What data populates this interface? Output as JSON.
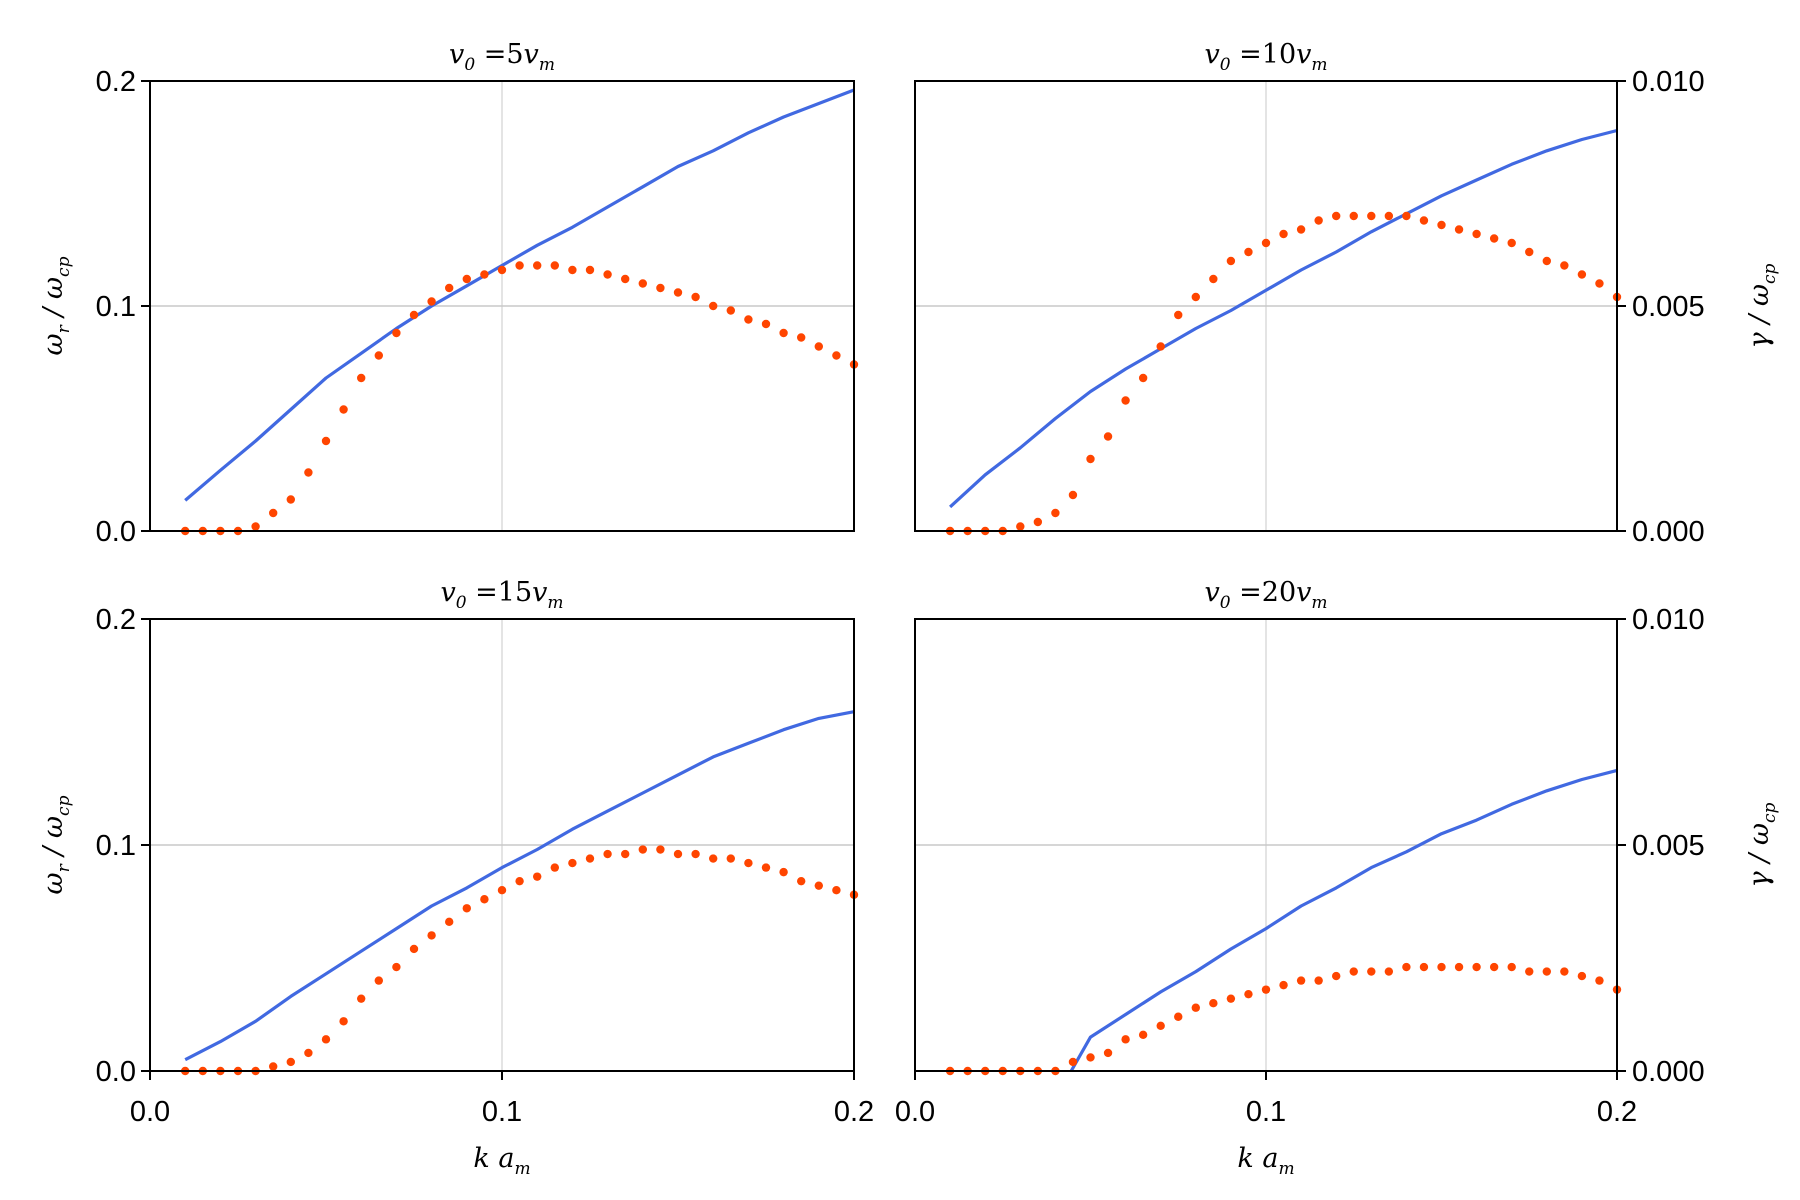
{
  "chart_data": [
    {
      "type": "line+scatter",
      "title": {
        "lhs": "v",
        "lhs_sub": "0",
        "eq": "=",
        "num": "5",
        "rhs": "v",
        "rhs_sub": "m"
      },
      "xlim": [
        0,
        0.2
      ],
      "ylim_left": [
        0,
        0.2
      ],
      "ylim_right": [
        0,
        0.01
      ],
      "xticks": [
        "0.0",
        "0.1",
        "0.2"
      ],
      "show_xticks": false,
      "yticks_left": [
        "0.0",
        "0.1",
        "0.2"
      ],
      "show_left": true,
      "yticks_right": [
        "0.000",
        "0.005",
        "0.010"
      ],
      "show_right": false,
      "grid": true,
      "line": {
        "axis": "left",
        "x": [
          0.01,
          0.02,
          0.03,
          0.04,
          0.05,
          0.06,
          0.07,
          0.08,
          0.09,
          0.1,
          0.11,
          0.12,
          0.13,
          0.14,
          0.15,
          0.16,
          0.17,
          0.18,
          0.19,
          0.2
        ],
        "y": [
          0.0136,
          0.027,
          0.04,
          0.054,
          0.068,
          0.079,
          0.09,
          0.1,
          0.109,
          0.118,
          0.127,
          0.135,
          0.144,
          0.153,
          0.162,
          0.169,
          0.177,
          0.184,
          0.19,
          0.196
        ]
      },
      "dots": {
        "axis": "right",
        "y": [
          0,
          0,
          0,
          0,
          0.0001,
          0.0004,
          0.0007,
          0.0013,
          0.002,
          0.0027,
          0.0034,
          0.0039,
          0.0044,
          0.0048,
          0.0051,
          0.0054,
          0.0056,
          0.0057,
          0.0058,
          0.0059,
          0.0059,
          0.0059,
          0.0058,
          0.0058,
          0.0057,
          0.0056,
          0.0055,
          0.0054,
          0.0053,
          0.0052,
          0.005,
          0.0049,
          0.0047,
          0.0046,
          0.0044,
          0.0043,
          0.0041,
          0.0039,
          0.0037
        ]
      }
    },
    {
      "type": "line+scatter",
      "title": {
        "lhs": "v",
        "lhs_sub": "0",
        "eq": "=",
        "num": "10",
        "rhs": "v",
        "rhs_sub": "m"
      },
      "xlim": [
        0,
        0.2
      ],
      "ylim_left": [
        0,
        0.2
      ],
      "ylim_right": [
        0,
        0.01
      ],
      "xticks": [
        "0.0",
        "0.1",
        "0.2"
      ],
      "show_xticks": false,
      "yticks_left": [
        "0.0",
        "0.1",
        "0.2"
      ],
      "show_left": false,
      "yticks_right": [
        "0.000",
        "0.005",
        "0.010"
      ],
      "show_right": true,
      "grid": true,
      "line": {
        "axis": "left",
        "x": [
          0.01,
          0.02,
          0.03,
          0.04,
          0.05,
          0.06,
          0.07,
          0.08,
          0.09,
          0.1,
          0.11,
          0.12,
          0.13,
          0.14,
          0.15,
          0.16,
          0.17,
          0.18,
          0.19,
          0.2
        ],
        "y": [
          0.0107,
          0.025,
          0.037,
          0.05,
          0.062,
          0.072,
          0.081,
          0.09,
          0.098,
          0.107,
          0.116,
          0.124,
          0.133,
          0.141,
          0.149,
          0.156,
          0.163,
          0.169,
          0.174,
          0.178
        ]
      },
      "dots": {
        "axis": "right",
        "y": [
          0,
          0,
          0,
          0,
          0.0001,
          0.0002,
          0.0004,
          0.0008,
          0.0016,
          0.0021,
          0.0029,
          0.0034,
          0.0041,
          0.0048,
          0.0052,
          0.0056,
          0.006,
          0.0062,
          0.0064,
          0.0066,
          0.0067,
          0.0069,
          0.007,
          0.007,
          0.007,
          0.007,
          0.007,
          0.0069,
          0.0068,
          0.0067,
          0.0066,
          0.0065,
          0.0064,
          0.0062,
          0.006,
          0.0059,
          0.0057,
          0.0055,
          0.0052
        ]
      }
    },
    {
      "type": "line+scatter",
      "title": {
        "lhs": "v",
        "lhs_sub": "0",
        "eq": "=",
        "num": "15",
        "rhs": "v",
        "rhs_sub": "m"
      },
      "xlim": [
        0,
        0.2
      ],
      "ylim_left": [
        0,
        0.2
      ],
      "ylim_right": [
        0,
        0.01
      ],
      "xticks": [
        "0.0",
        "0.1",
        "0.2"
      ],
      "show_xticks": true,
      "yticks_left": [
        "0.0",
        "0.1",
        "0.2"
      ],
      "show_left": true,
      "yticks_right": [
        "0.000",
        "0.005",
        "0.010"
      ],
      "show_right": false,
      "grid": true,
      "line": {
        "axis": "left",
        "x": [
          0.01,
          0.02,
          0.03,
          0.04,
          0.05,
          0.06,
          0.07,
          0.08,
          0.09,
          0.1,
          0.11,
          0.12,
          0.13,
          0.14,
          0.15,
          0.16,
          0.17,
          0.18,
          0.19,
          0.2
        ],
        "y": [
          0.005,
          0.013,
          0.022,
          0.033,
          0.043,
          0.053,
          0.063,
          0.073,
          0.081,
          0.09,
          0.098,
          0.107,
          0.115,
          0.123,
          0.131,
          0.139,
          0.145,
          0.151,
          0.156,
          0.159
        ]
      },
      "dots": {
        "axis": "right",
        "y": [
          0,
          0,
          0,
          0,
          0,
          0.0001,
          0.0002,
          0.0004,
          0.0007,
          0.0011,
          0.0016,
          0.002,
          0.0023,
          0.0027,
          0.003,
          0.0033,
          0.0036,
          0.0038,
          0.004,
          0.0042,
          0.0043,
          0.0045,
          0.0046,
          0.0047,
          0.0048,
          0.0048,
          0.0049,
          0.0049,
          0.0048,
          0.0048,
          0.0047,
          0.0047,
          0.0046,
          0.0045,
          0.0044,
          0.0042,
          0.0041,
          0.004,
          0.0039
        ]
      }
    },
    {
      "type": "line+scatter",
      "title": {
        "lhs": "v",
        "lhs_sub": "0",
        "eq": "=",
        "num": "20",
        "rhs": "v",
        "rhs_sub": "m"
      },
      "xlim": [
        0,
        0.2
      ],
      "ylim_left": [
        0,
        0.2
      ],
      "ylim_right": [
        0,
        0.01
      ],
      "xticks": [
        "0.0",
        "0.1",
        "0.2"
      ],
      "show_xticks": true,
      "yticks_left": [
        "0.0",
        "0.1",
        "0.2"
      ],
      "show_left": false,
      "yticks_right": [
        "0.000",
        "0.005",
        "0.010"
      ],
      "show_right": true,
      "grid": true,
      "line": {
        "axis": "left",
        "x": [
          0.0445,
          0.05,
          0.06,
          0.07,
          0.08,
          0.09,
          0.1,
          0.11,
          0.12,
          0.13,
          0.14,
          0.15,
          0.16,
          0.17,
          0.18,
          0.19,
          0.2
        ],
        "y": [
          0,
          0.015,
          0.025,
          0.035,
          0.044,
          0.054,
          0.063,
          0.073,
          0.081,
          0.09,
          0.097,
          0.105,
          0.111,
          0.118,
          0.124,
          0.129,
          0.133
        ]
      },
      "dots": {
        "axis": "right",
        "y": [
          0,
          0,
          0,
          0,
          0,
          0,
          0,
          0.0002,
          0.0003,
          0.0004,
          0.0007,
          0.0008,
          0.001,
          0.0012,
          0.0014,
          0.0015,
          0.0016,
          0.0017,
          0.0018,
          0.0019,
          0.002,
          0.002,
          0.0021,
          0.0022,
          0.0022,
          0.0022,
          0.0023,
          0.0023,
          0.0023,
          0.0023,
          0.0023,
          0.0023,
          0.0023,
          0.0022,
          0.0022,
          0.0022,
          0.0021,
          0.002,
          0.0018
        ]
      }
    }
  ],
  "dots_x": [
    0.01,
    0.015,
    0.02,
    0.025,
    0.03,
    0.035,
    0.04,
    0.045,
    0.05,
    0.055,
    0.06,
    0.065,
    0.07,
    0.075,
    0.08,
    0.085,
    0.09,
    0.095,
    0.1,
    0.105,
    0.11,
    0.115,
    0.12,
    0.125,
    0.13,
    0.135,
    0.14,
    0.145,
    0.15,
    0.155,
    0.16,
    0.165,
    0.17,
    0.175,
    0.18,
    0.185,
    0.19,
    0.195,
    0.2
  ],
  "labels": {
    "xlabel": {
      "a": "k",
      "b": "a",
      "b_sub": "m"
    },
    "ylabel_left": {
      "a": "ω",
      "a_sub": "r",
      "sep": "/",
      "b": "ω",
      "b_sub": "cp"
    },
    "ylabel_right": {
      "a": "γ",
      "sep": "/",
      "b": "ω",
      "b_sub": "cp"
    }
  },
  "colors": {
    "line": "#4169E1",
    "dots": "#FF4500",
    "grid": "#c8c8c8",
    "axis": "#000000"
  }
}
